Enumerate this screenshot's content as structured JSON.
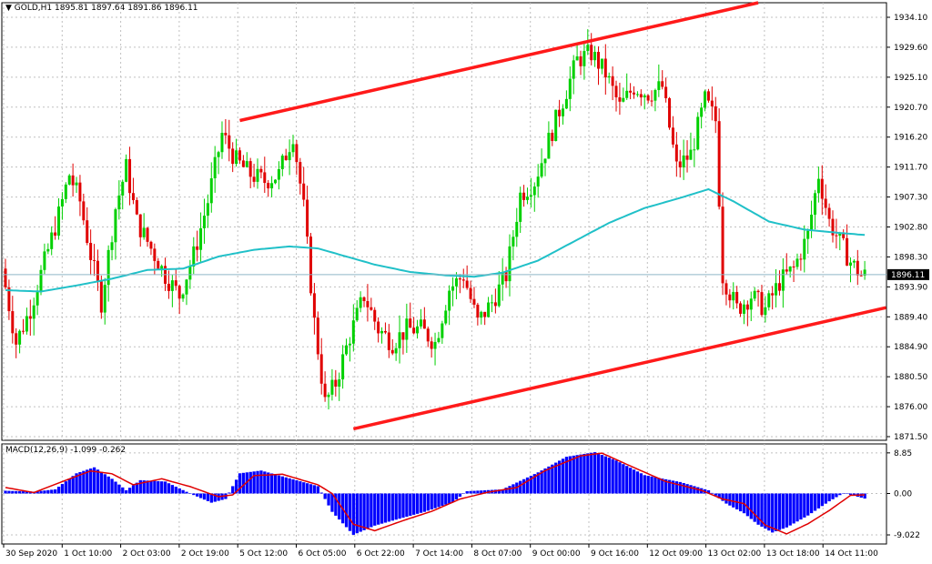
{
  "header": {
    "arrow": "▼",
    "symbol": "GOLD,H1",
    "open": "1895.81",
    "high": "1897.64",
    "low": "1891.86",
    "close": "1896.11"
  },
  "macd_header": {
    "name": "MACD(12,26,9)",
    "main": "-1.099",
    "signal": "-0.262"
  },
  "price_axis": {
    "labels": [
      "1934.10",
      "1929.60",
      "1925.10",
      "1920.70",
      "1916.20",
      "1911.70",
      "1907.30",
      "1902.80",
      "1898.30",
      "1893.90",
      "1889.40",
      "1884.90",
      "1880.50",
      "1876.00",
      "1871.50"
    ],
    "current": "1896.11"
  },
  "macd_axis": {
    "labels": [
      "8.85",
      "0.00",
      "-9.022"
    ]
  },
  "time_axis": {
    "labels": [
      "30 Sep 2020",
      "1 Oct 10:00",
      "2 Oct 03:00",
      "2 Oct 19:00",
      "5 Oct 12:00",
      "6 Oct 05:00",
      "6 Oct 22:00",
      "7 Oct 14:00",
      "8 Oct 07:00",
      "9 Oct 00:00",
      "9 Oct 16:00",
      "12 Oct 09:00",
      "13 Oct 02:00",
      "13 Oct 18:00",
      "14 Oct 11:00"
    ]
  },
  "colors": {
    "bull": "#00d000",
    "bear": "#e00000",
    "ma": "#20c0c8",
    "trendline": "#ff1a1a",
    "histogram": "#0000ff",
    "signal": "#e00000",
    "grid": "#c0c0c0",
    "current_price_line": "#8fb8c8",
    "current_price_label_bg": "#000000"
  },
  "chart_data": [
    {
      "type": "candlestick",
      "title": "GOLD,H1",
      "ylim": [
        1871.5,
        1936.5
      ],
      "x_ticks": [
        "30 Sep 2020",
        "1 Oct 10:00",
        "2 Oct 03:00",
        "2 Oct 19:00",
        "5 Oct 12:00",
        "6 Oct 05:00",
        "6 Oct 22:00",
        "7 Oct 14:00",
        "8 Oct 07:00",
        "9 Oct 00:00",
        "9 Oct 16:00",
        "12 Oct 09:00",
        "13 Oct 02:00",
        "13 Oct 18:00",
        "14 Oct 11:00"
      ],
      "close_path": [
        [
          0,
          1897
        ],
        [
          4,
          1886
        ],
        [
          8,
          1891
        ],
        [
          12,
          1898
        ],
        [
          16,
          1905
        ],
        [
          19,
          1911
        ],
        [
          22,
          1907
        ],
        [
          25,
          1899
        ],
        [
          28,
          1892
        ],
        [
          32,
          1906
        ],
        [
          35,
          1912
        ],
        [
          38,
          1904
        ],
        [
          42,
          1900
        ],
        [
          46,
          1896
        ],
        [
          50,
          1893
        ],
        [
          54,
          1899
        ],
        [
          58,
          1907
        ],
        [
          62,
          1917
        ],
        [
          66,
          1913
        ],
        [
          70,
          1911
        ],
        [
          74,
          1910
        ],
        [
          78,
          1911
        ],
        [
          82,
          1917
        ],
        [
          85,
          1906
        ],
        [
          88,
          1889
        ],
        [
          91,
          1877
        ],
        [
          94,
          1880
        ],
        [
          98,
          1887
        ],
        [
          102,
          1893
        ],
        [
          106,
          1888
        ],
        [
          110,
          1886
        ],
        [
          114,
          1888
        ],
        [
          118,
          1888
        ],
        [
          122,
          1886
        ],
        [
          126,
          1894
        ],
        [
          130,
          1896
        ],
        [
          134,
          1889
        ],
        [
          138,
          1892
        ],
        [
          142,
          1896
        ],
        [
          146,
          1908
        ],
        [
          150,
          1910
        ],
        [
          154,
          1916
        ],
        [
          158,
          1922
        ],
        [
          162,
          1928
        ],
        [
          166,
          1929
        ],
        [
          170,
          1926
        ],
        [
          174,
          1921
        ],
        [
          178,
          1924
        ],
        [
          182,
          1923
        ],
        [
          186,
          1924
        ],
        [
          190,
          1912
        ],
        [
          194,
          1914
        ],
        [
          198,
          1922
        ],
        [
          201,
          1919
        ],
        [
          203,
          1896
        ],
        [
          207,
          1891
        ],
        [
          211,
          1893
        ],
        [
          215,
          1891
        ],
        [
          219,
          1895
        ],
        [
          223,
          1897
        ],
        [
          227,
          1902
        ],
        [
          230,
          1911
        ],
        [
          233,
          1904
        ],
        [
          236,
          1901
        ],
        [
          239,
          1898
        ],
        [
          242,
          1896
        ]
      ],
      "moving_average": [
        [
          0,
          1893.8
        ],
        [
          10,
          1893.6
        ],
        [
          20,
          1894.5
        ],
        [
          30,
          1895.5
        ],
        [
          40,
          1896.8
        ],
        [
          50,
          1897.0
        ],
        [
          60,
          1898.8
        ],
        [
          70,
          1899.8
        ],
        [
          80,
          1900.3
        ],
        [
          88,
          1900.0
        ],
        [
          96,
          1898.8
        ],
        [
          104,
          1897.6
        ],
        [
          114,
          1896.5
        ],
        [
          124,
          1896.0
        ],
        [
          132,
          1895.8
        ],
        [
          140,
          1896.4
        ],
        [
          150,
          1898.2
        ],
        [
          160,
          1901.0
        ],
        [
          170,
          1903.8
        ],
        [
          180,
          1906.0
        ],
        [
          190,
          1907.5
        ],
        [
          198,
          1908.8
        ],
        [
          205,
          1907.0
        ],
        [
          215,
          1904.0
        ],
        [
          225,
          1902.8
        ],
        [
          235,
          1902.3
        ],
        [
          242,
          1902.0
        ]
      ],
      "trendlines": [
        {
          "from": [
            66,
            1919.0
          ],
          "to": [
            212,
            1936.5
          ]
        },
        {
          "from": [
            98,
            1873.2
          ],
          "to": [
            248,
            1891.2
          ]
        }
      ],
      "current_price": 1896.11
    },
    {
      "type": "bar",
      "title": "MACD(12,26,9)",
      "ylim": [
        -11.0,
        10.8
      ],
      "histogram": [
        [
          0,
          0.6
        ],
        [
          8,
          0.4
        ],
        [
          14,
          0.9
        ],
        [
          20,
          4.4
        ],
        [
          25,
          5.7
        ],
        [
          30,
          3.2
        ],
        [
          34,
          0.7
        ],
        [
          38,
          2.9
        ],
        [
          45,
          2.6
        ],
        [
          52,
          0.0
        ],
        [
          58,
          -2.0
        ],
        [
          62,
          -1.2
        ],
        [
          66,
          4.4
        ],
        [
          72,
          5.0
        ],
        [
          80,
          3.3
        ],
        [
          88,
          1.6
        ],
        [
          92,
          -4.0
        ],
        [
          98,
          -9.0
        ],
        [
          104,
          -7.0
        ],
        [
          110,
          -5.7
        ],
        [
          118,
          -4.0
        ],
        [
          126,
          -1.9
        ],
        [
          130,
          0.5
        ],
        [
          140,
          0.9
        ],
        [
          150,
          4.6
        ],
        [
          158,
          8.0
        ],
        [
          166,
          9.0
        ],
        [
          172,
          7.2
        ],
        [
          180,
          4.0
        ],
        [
          190,
          2.5
        ],
        [
          198,
          0.7
        ],
        [
          203,
          -2.2
        ],
        [
          208,
          -4.3
        ],
        [
          212,
          -6.8
        ],
        [
          216,
          -8.5
        ],
        [
          220,
          -7.4
        ],
        [
          226,
          -4.8
        ],
        [
          232,
          -1.7
        ],
        [
          236,
          0.1
        ],
        [
          242,
          -1.1
        ]
      ],
      "signal": [
        [
          0,
          1.3
        ],
        [
          8,
          0.2
        ],
        [
          16,
          2.6
        ],
        [
          24,
          4.9
        ],
        [
          30,
          4.3
        ],
        [
          36,
          1.9
        ],
        [
          44,
          3.2
        ],
        [
          52,
          1.5
        ],
        [
          60,
          -0.7
        ],
        [
          64,
          -0.3
        ],
        [
          70,
          3.9
        ],
        [
          78,
          4.2
        ],
        [
          88,
          1.9
        ],
        [
          92,
          0.0
        ],
        [
          98,
          -6.7
        ],
        [
          104,
          -8.1
        ],
        [
          112,
          -5.9
        ],
        [
          120,
          -3.9
        ],
        [
          128,
          -1.2
        ],
        [
          136,
          0.3
        ],
        [
          144,
          1.3
        ],
        [
          152,
          5.0
        ],
        [
          162,
          8.2
        ],
        [
          168,
          8.8
        ],
        [
          176,
          6.0
        ],
        [
          186,
          2.6
        ],
        [
          196,
          0.7
        ],
        [
          202,
          -1.2
        ],
        [
          208,
          -2.2
        ],
        [
          214,
          -6.9
        ],
        [
          220,
          -8.8
        ],
        [
          226,
          -6.6
        ],
        [
          232,
          -3.7
        ],
        [
          238,
          -0.4
        ],
        [
          242,
          -0.3
        ]
      ]
    }
  ]
}
